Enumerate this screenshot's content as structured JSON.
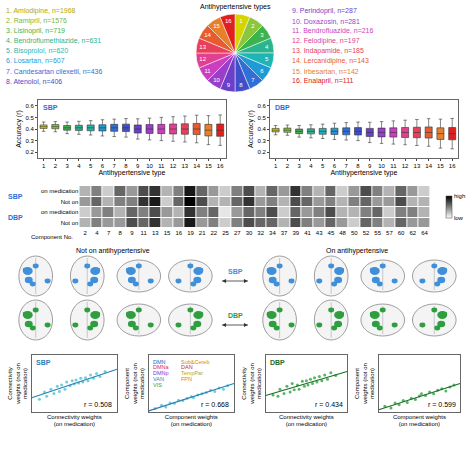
{
  "chart_data": [
    {
      "type": "list",
      "items": [
        "1. Amlodipine, n=1968",
        "2. Ramipril, n=1576",
        "3. Lisinopril, n=719",
        "4. Bendroflumethiazide, n=631",
        "5. Bisoprolol, n=620",
        "6. Losartan, n=607",
        "7. Candesartan cilexetil, n=436",
        "8. Atenolol, n=406",
        "9. Perindopril, n=287",
        "10. Doxazosin, n=281",
        "11. Bendrofluazide, n=216",
        "12. Felodipine, n=197",
        "13. Indapamide, n=185",
        "14. Lercanidipine, n=143",
        "15. Irbesartan, n=142",
        "16. Enalapril, n=111"
      ],
      "colors": [
        "#b5a800",
        "#7fb52f",
        "#3cb44b",
        "#2ab58f",
        "#1fb5b5",
        "#1e9ad6",
        "#2f6fd6",
        "#3f4fc9",
        "#6a3fc9",
        "#9b3fc9",
        "#c93fc0",
        "#e0408f",
        "#e8405a",
        "#e85a30",
        "#e8802a",
        "#e02020"
      ]
    },
    {
      "type": "pie",
      "title": "Antihypertensive types",
      "categories": [
        "1",
        "2",
        "3",
        "4",
        "5",
        "6",
        "7",
        "8",
        "9",
        "10",
        "11",
        "12",
        "13",
        "14",
        "15",
        "16"
      ],
      "values": [
        1,
        1,
        1,
        1,
        1,
        1,
        1,
        1,
        1,
        1,
        1,
        1,
        1,
        1,
        1,
        1
      ],
      "colors": [
        "#d4d400",
        "#8cc63f",
        "#3cb44b",
        "#2ab58f",
        "#1fb5b5",
        "#1e9ad6",
        "#2f6fd6",
        "#3f4fc9",
        "#6a3fc9",
        "#9b3fc9",
        "#c93fc0",
        "#e0408f",
        "#e8405a",
        "#e85a30",
        "#e8802a",
        "#e02020"
      ]
    },
    {
      "type": "box",
      "title": "SBP",
      "x_label": "Antihypertensive type",
      "y_label": "Accuracy (r)",
      "categories": [
        1,
        2,
        3,
        4,
        5,
        6,
        7,
        8,
        9,
        10,
        11,
        12,
        13,
        14,
        15,
        16
      ],
      "lower": [
        0.38,
        0.376,
        0.36,
        0.354,
        0.348,
        0.34,
        0.335,
        0.33,
        0.313,
        0.306,
        0.3,
        0.294,
        0.288,
        0.281,
        0.265,
        0.259
      ],
      "q1": [
        0.405,
        0.402,
        0.39,
        0.388,
        0.385,
        0.383,
        0.38,
        0.378,
        0.365,
        0.362,
        0.36,
        0.357,
        0.355,
        0.352,
        0.34,
        0.337
      ],
      "median": [
        0.42,
        0.42,
        0.41,
        0.41,
        0.41,
        0.41,
        0.41,
        0.41,
        0.4,
        0.4,
        0.4,
        0.4,
        0.4,
        0.4,
        0.39,
        0.39
      ],
      "q3": [
        0.435,
        0.438,
        0.43,
        0.432,
        0.435,
        0.437,
        0.44,
        0.442,
        0.435,
        0.438,
        0.44,
        0.443,
        0.445,
        0.448,
        0.44,
        0.443
      ],
      "upper": [
        0.46,
        0.464,
        0.46,
        0.466,
        0.472,
        0.48,
        0.485,
        0.49,
        0.488,
        0.494,
        0.5,
        0.506,
        0.512,
        0.519,
        0.515,
        0.521
      ],
      "colors": [
        "#d4d400",
        "#8cc63f",
        "#3cb44b",
        "#2ab58f",
        "#1fb5b5",
        "#1e9ad6",
        "#2f6fd6",
        "#3f4fc9",
        "#6a3fc9",
        "#9b3fc9",
        "#c93fc0",
        "#e0408f",
        "#e8405a",
        "#e85a30",
        "#e8802a",
        "#e02020"
      ],
      "label_color": "#2f6fd6",
      "xlim": [
        0.5,
        16.5
      ],
      "xticks": [
        1,
        2,
        3,
        4,
        5,
        6,
        7,
        8,
        9,
        10,
        11,
        12,
        13,
        14,
        15,
        16
      ],
      "ylim": [
        0.15,
        0.65
      ],
      "yticks": [
        0.2,
        0.3,
        0.4,
        0.5,
        0.6
      ]
    },
    {
      "type": "box",
      "title": "DBP",
      "x_label": "Antihypertensive type",
      "y_label": "Accuracy (r)",
      "categories": [
        1,
        2,
        3,
        4,
        5,
        6,
        7,
        8,
        9,
        10,
        11,
        12,
        13,
        14,
        15,
        16
      ],
      "lower": [
        0.35,
        0.346,
        0.33,
        0.324,
        0.318,
        0.31,
        0.305,
        0.3,
        0.283,
        0.276,
        0.27,
        0.264,
        0.258,
        0.251,
        0.235,
        0.229
      ],
      "q1": [
        0.375,
        0.372,
        0.36,
        0.358,
        0.355,
        0.353,
        0.35,
        0.348,
        0.335,
        0.332,
        0.33,
        0.327,
        0.325,
        0.322,
        0.31,
        0.307
      ],
      "median": [
        0.39,
        0.39,
        0.38,
        0.38,
        0.38,
        0.38,
        0.38,
        0.38,
        0.37,
        0.37,
        0.37,
        0.37,
        0.37,
        0.37,
        0.36,
        0.36
      ],
      "q3": [
        0.405,
        0.408,
        0.4,
        0.402,
        0.405,
        0.407,
        0.41,
        0.412,
        0.405,
        0.408,
        0.41,
        0.413,
        0.415,
        0.418,
        0.41,
        0.413
      ],
      "upper": [
        0.43,
        0.434,
        0.43,
        0.436,
        0.442,
        0.45,
        0.455,
        0.46,
        0.458,
        0.464,
        0.47,
        0.476,
        0.482,
        0.489,
        0.485,
        0.491
      ],
      "colors": [
        "#d4d400",
        "#8cc63f",
        "#3cb44b",
        "#2ab58f",
        "#1fb5b5",
        "#1e9ad6",
        "#2f6fd6",
        "#3f4fc9",
        "#6a3fc9",
        "#9b3fc9",
        "#c93fc0",
        "#e0408f",
        "#e8405a",
        "#e85a30",
        "#e8802a",
        "#e02020"
      ],
      "label_color": "#2f6fd6",
      "xlim": [
        0.5,
        16.5
      ],
      "xticks": [
        1,
        2,
        3,
        4,
        5,
        6,
        7,
        8,
        9,
        10,
        11,
        12,
        13,
        14,
        15,
        16
      ],
      "ylim": [
        0.15,
        0.65
      ],
      "yticks": [
        0.2,
        0.3,
        0.4,
        0.5,
        0.6
      ]
    },
    {
      "type": "heatmap",
      "x_label": "Component No.",
      "categories": [
        "2",
        "4",
        "7",
        "8",
        "9",
        "11",
        "13",
        "15",
        "16",
        "19",
        "21",
        "22",
        "25",
        "27",
        "30",
        "32",
        "34",
        "37",
        "39",
        "41",
        "43",
        "45",
        "48",
        "50",
        "52",
        "55",
        "57",
        "60",
        "62",
        "64"
      ],
      "groups": [
        {
          "name": "SBP",
          "rows": [
            "on medication",
            "Not on"
          ]
        },
        {
          "name": "DBP",
          "rows": [
            "on medication",
            "Not on"
          ]
        }
      ],
      "cells": [
        [
          0.3,
          0.5,
          0.2,
          0.6,
          0.4,
          0.7,
          0.8,
          0.3,
          0.5,
          0.9,
          0.6,
          0.4,
          0.2,
          0.5,
          0.7,
          0.3,
          0.6,
          0.4,
          0.8,
          0.5,
          0.3,
          0.6,
          0.2,
          0.4,
          0.7,
          0.5,
          0.3,
          0.6,
          0.4,
          0.2
        ],
        [
          0.4,
          0.6,
          0.3,
          0.5,
          0.5,
          0.8,
          0.9,
          0.2,
          0.6,
          1.0,
          0.7,
          0.3,
          0.3,
          0.6,
          0.8,
          0.4,
          0.5,
          0.3,
          0.7,
          0.6,
          0.4,
          0.5,
          0.3,
          0.5,
          0.6,
          0.4,
          0.4,
          0.7,
          0.3,
          0.3
        ],
        [
          0.2,
          0.4,
          0.5,
          0.3,
          0.6,
          0.5,
          0.7,
          0.4,
          0.3,
          0.8,
          0.5,
          0.6,
          0.1,
          0.4,
          0.6,
          0.5,
          0.7,
          0.2,
          0.6,
          0.4,
          0.5,
          0.7,
          0.3,
          0.3,
          0.5,
          0.6,
          0.2,
          0.5,
          0.5,
          0.3
        ],
        [
          0.3,
          0.5,
          0.4,
          0.4,
          0.7,
          0.6,
          0.8,
          0.3,
          0.4,
          0.9,
          0.4,
          0.5,
          0.2,
          0.5,
          0.7,
          0.6,
          0.6,
          0.3,
          0.7,
          0.5,
          0.4,
          0.6,
          0.4,
          0.2,
          0.6,
          0.5,
          0.3,
          0.6,
          0.4,
          0.4
        ]
      ],
      "color_range": [
        0,
        1
      ],
      "colorbar_ticks": [
        {
          "value": 1,
          "label": "high"
        },
        {
          "value": 0,
          "label": "low"
        }
      ]
    },
    {
      "type": "diagram",
      "left_label": "Not on antihypertensive",
      "right_label": "On antihypertensive",
      "rows": [
        "SBP",
        "DBP"
      ],
      "colors": [
        "#3f8fd9",
        "#2e9e3e"
      ]
    },
    {
      "type": "scatter",
      "label": "SBP",
      "x_label": "Connectivity weights (on medication)",
      "y_label": "Connectivity weights (not on medication)",
      "x": [
        -0.82,
        -0.7,
        -0.65,
        -0.55,
        -0.48,
        -0.4,
        -0.35,
        -0.3,
        -0.22,
        -0.18,
        -0.1,
        -0.05,
        0,
        0.04,
        0.1,
        0.15,
        0.2,
        0.26,
        0.32,
        0.38,
        0.45,
        0.52,
        0.6,
        0.72
      ],
      "values": [
        -0.55,
        -0.3,
        -0.45,
        -0.2,
        -0.35,
        -0.1,
        -0.28,
        -0.05,
        -0.2,
        0.05,
        -0.08,
        0.1,
        -0.02,
        0.12,
        0.02,
        0.18,
        0.05,
        0.2,
        0.1,
        0.3,
        0.18,
        0.35,
        0.25,
        0.42
      ],
      "fit": {
        "x": [
          -1,
          1
        ],
        "values": [
          -0.5,
          0.5
        ]
      },
      "annotation": "r = 0.508",
      "color": "#5cc6cf",
      "line_color": "#2a7fb8",
      "xlim": [
        -1,
        1
      ],
      "ylim": [
        -1,
        1
      ],
      "tick_labels": false
    },
    {
      "type": "scatter",
      "x_label": "Component weights (on medication)",
      "y_label": "Component weights (not on medication)",
      "x": [
        -0.85,
        -0.7,
        -0.6,
        -0.5,
        -0.4,
        -0.3,
        -0.2,
        -0.1,
        0,
        0.05,
        0.15,
        0.25,
        0.35,
        0.45,
        0.55,
        0.65,
        0.75,
        0.85
      ],
      "values": [
        -0.85,
        -0.7,
        -0.78,
        -0.6,
        -0.62,
        -0.48,
        -0.5,
        -0.4,
        -0.32,
        -0.38,
        -0.25,
        -0.2,
        -0.15,
        -0.05,
        -0.1,
        0.05,
        0.0,
        0.15
      ],
      "fit": {
        "x": [
          -1,
          1
        ],
        "values": [
          -0.95,
          0.25
        ]
      },
      "annotation": "r = 0.668",
      "color": "#5cc6cf",
      "line_color": "#2a7fb8",
      "networks": [
        {
          "name": "DMN",
          "color": "#1f5fbf"
        },
        {
          "name": "DMNa",
          "color": "#d6246e"
        },
        {
          "name": "DMNp",
          "color": "#8a2be2"
        },
        {
          "name": "VAN",
          "color": "#1e90c8"
        },
        {
          "name": "VIS",
          "color": "#2e9e3e"
        },
        {
          "name": "Sub&Cereb",
          "color": "#d98a00"
        },
        {
          "name": "DAN",
          "color": "#c03030"
        },
        {
          "name": "TempPar",
          "color": "#b5a800"
        },
        {
          "name": "FPN",
          "color": "#e07b39"
        }
      ],
      "xlim": [
        -1,
        1
      ],
      "ylim": [
        -1,
        1.5
      ],
      "tick_labels": false
    },
    {
      "type": "scatter",
      "label": "DBP",
      "x_label": "Connectivity weights (on medication)",
      "y_label": "Connectivity weights (not on medication)",
      "x": [
        -0.82,
        -0.7,
        -0.65,
        -0.55,
        -0.48,
        -0.4,
        -0.35,
        -0.3,
        -0.22,
        -0.18,
        -0.1,
        -0.05,
        0,
        0.04,
        0.1,
        0.15,
        0.2,
        0.26,
        0.32,
        0.38,
        0.45,
        0.52,
        0.6,
        0.72
      ],
      "values": [
        -0.4,
        -0.45,
        -0.2,
        -0.35,
        -0.1,
        -0.3,
        0.0,
        -0.22,
        -0.05,
        -0.2,
        0.08,
        -0.1,
        0.1,
        -0.05,
        0.15,
        0.0,
        0.2,
        0.05,
        0.25,
        0.1,
        0.3,
        0.15,
        0.38,
        0.28
      ],
      "fit": {
        "x": [
          -1,
          1
        ],
        "values": [
          -0.42,
          0.42
        ]
      },
      "annotation": "r = 0.434",
      "color": "#3aa84a",
      "line_color": "#1d6b2a",
      "xlim": [
        -1,
        1
      ],
      "ylim": [
        -1,
        1
      ],
      "tick_labels": false
    },
    {
      "type": "scatter",
      "x_label": "Component weights (on medication)",
      "y_label": "Component weights (not on medication)",
      "x": [
        -0.85,
        -0.7,
        -0.6,
        -0.5,
        -0.4,
        -0.3,
        -0.2,
        -0.1,
        0,
        0.05,
        0.15,
        0.25,
        0.35,
        0.45,
        0.55,
        0.65,
        0.75,
        0.85
      ],
      "values": [
        -0.75,
        -0.82,
        -0.6,
        -0.68,
        -0.5,
        -0.58,
        -0.4,
        -0.45,
        -0.3,
        -0.2,
        -0.28,
        -0.12,
        -0.2,
        -0.05,
        0.02,
        -0.08,
        0.1,
        0.18
      ],
      "fit": {
        "x": [
          -1,
          1
        ],
        "values": [
          -0.9,
          0.25
        ]
      },
      "annotation": "r = 0.599",
      "color": "#3aa84a",
      "line_color": "#1d6b2a",
      "xlim": [
        -1,
        1
      ],
      "ylim": [
        -1,
        1.5
      ],
      "tick_labels": false
    }
  ]
}
